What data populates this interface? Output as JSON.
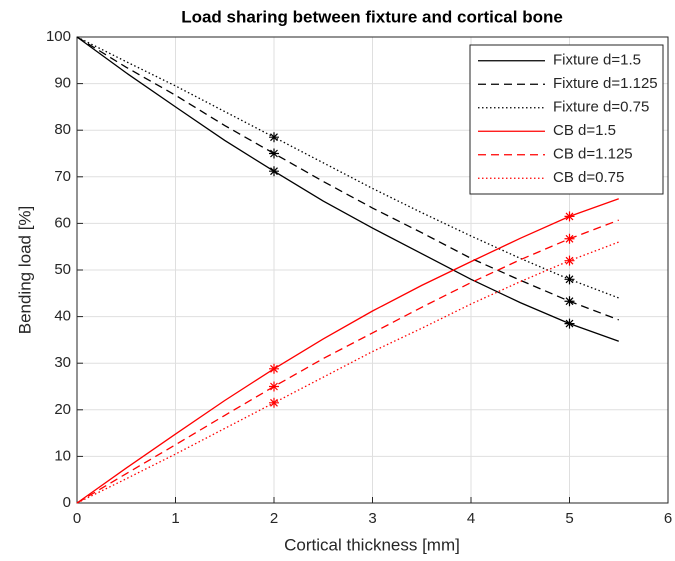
{
  "chart_data": {
    "type": "line",
    "title": "Load sharing between fixture and cortical bone",
    "x_label": "Cortical thickness [mm]",
    "y_label": "Bending load [%]",
    "x": [
      0,
      0.5,
      1,
      1.5,
      2,
      2.5,
      3,
      3.5,
      4,
      4.5,
      5,
      5.5
    ],
    "xlim": [
      0,
      6
    ],
    "xticks": [
      0,
      1,
      2,
      3,
      4,
      5,
      6
    ],
    "ylim": [
      0,
      100
    ],
    "yticks": [
      0,
      10,
      20,
      30,
      40,
      50,
      60,
      70,
      80,
      90,
      100
    ],
    "grid": true,
    "legend": "upper right",
    "marker_x": [
      2,
      5
    ],
    "series": [
      {
        "name": "Fixture d=1.5",
        "color": "#000000",
        "dash": "solid",
        "values": [
          100,
          92.3,
          85,
          77.8,
          71.2,
          64.8,
          59,
          53.5,
          48,
          43,
          38.5,
          34.7
        ]
      },
      {
        "name": "Fixture d=1.125",
        "color": "#000000",
        "dash": "dashed",
        "values": [
          100,
          93.5,
          87.5,
          81,
          75,
          69,
          63.3,
          58,
          52.5,
          47.8,
          43.3,
          39.3
        ]
      },
      {
        "name": "Fixture d=0.75",
        "color": "#000000",
        "dash": "dotted",
        "values": [
          100,
          94.7,
          89.5,
          84,
          78.5,
          73,
          67.5,
          62.3,
          57.3,
          52.5,
          48,
          44
        ]
      },
      {
        "name": "CB d=1.5",
        "color": "#ff0000",
        "dash": "solid",
        "values": [
          0,
          7.5,
          14.8,
          22,
          28.8,
          35.2,
          41.2,
          46.7,
          51.8,
          56.8,
          61.5,
          65.3
        ]
      },
      {
        "name": "CB d=1.125",
        "color": "#ff0000",
        "dash": "dashed",
        "values": [
          0,
          6.3,
          12.5,
          18.8,
          25,
          31,
          36.5,
          42,
          47.3,
          52.2,
          56.7,
          60.7
        ]
      },
      {
        "name": "CB d=0.75",
        "color": "#ff0000",
        "dash": "dotted",
        "values": [
          0,
          5.2,
          10.5,
          16,
          21.5,
          27,
          32.5,
          37.5,
          42.7,
          47.5,
          52,
          56
        ]
      }
    ]
  }
}
